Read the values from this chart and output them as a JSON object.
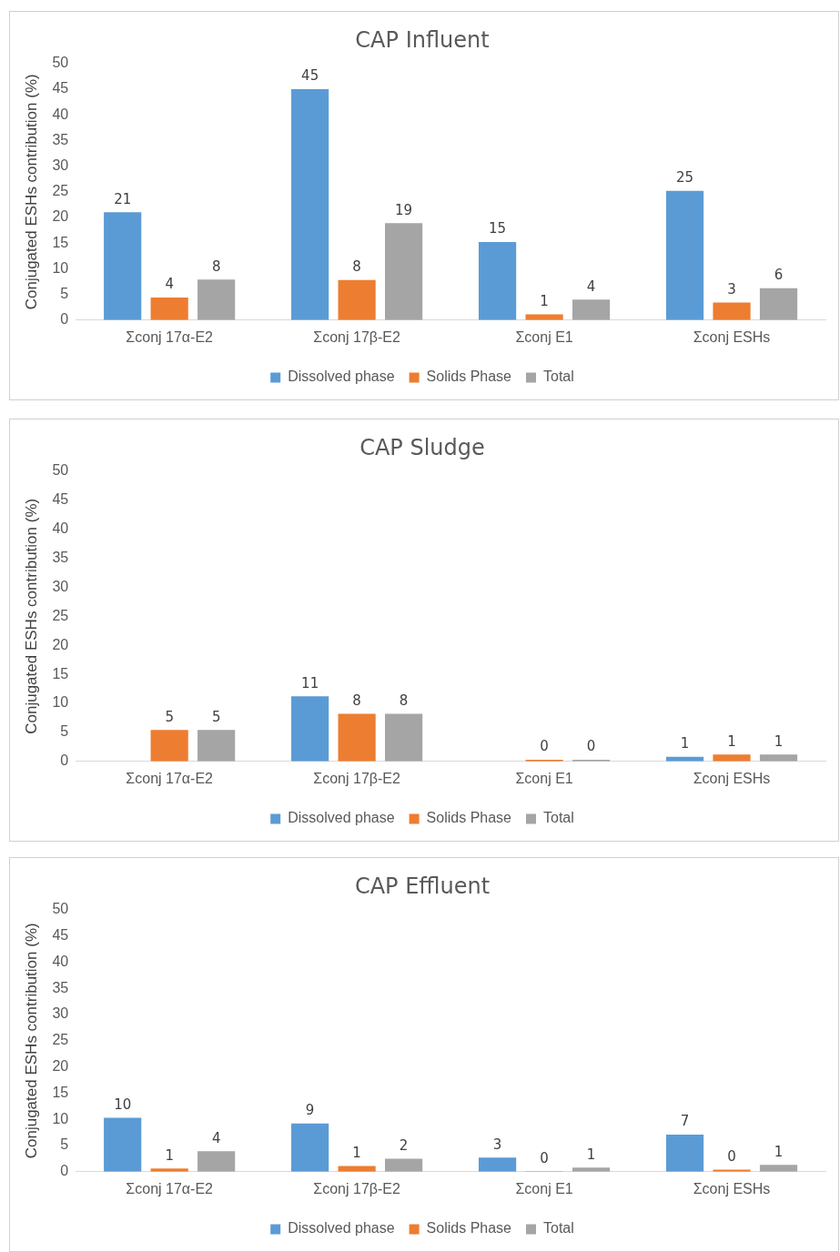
{
  "chart_data": [
    {
      "type": "bar",
      "title": "CAP Influent",
      "ylabel": "Conjugated ESHs contribution (%)",
      "categories": [
        "Σconj 17α-E2",
        "Σconj 17β-E2",
        "Σconj E1",
        "Σconj ESHs"
      ],
      "ylim": [
        0,
        50
      ],
      "yticks": [
        0,
        5,
        10,
        15,
        20,
        25,
        30,
        35,
        40,
        45,
        50
      ],
      "grid": false,
      "legend": "bottom",
      "series": [
        {
          "name": "Dissolved phase",
          "color": "#5b9bd5",
          "values": [
            21,
            45,
            15.2,
            25.2
          ],
          "value_labels": [
            "21",
            "45",
            "15",
            "25"
          ]
        },
        {
          "name": "Solids Phase",
          "color": "#ed7d31",
          "values": [
            4.4,
            7.8,
            1.1,
            3.4
          ],
          "value_labels": [
            "4",
            "8",
            "1",
            "3"
          ]
        },
        {
          "name": "Total",
          "color": "#a5a5a5",
          "values": [
            7.9,
            18.9,
            4,
            6.2
          ],
          "value_labels": [
            "8",
            "19",
            "4",
            "6"
          ]
        }
      ]
    },
    {
      "type": "bar",
      "title": "CAP Sludge",
      "ylabel": "Conjugated ESHs contribution (%)",
      "categories": [
        "Σconj 17α-E2",
        "Σconj 17β-E2",
        "Σconj E1",
        "Σconj ESHs"
      ],
      "ylim": [
        0,
        50
      ],
      "yticks": [
        0,
        5,
        10,
        15,
        20,
        25,
        30,
        35,
        40,
        45,
        50
      ],
      "grid": false,
      "legend": "bottom",
      "series": [
        {
          "name": "Dissolved phase",
          "color": "#5b9bd5",
          "values": [
            null,
            11.2,
            null,
            0.8
          ],
          "value_labels": [
            null,
            "11",
            null,
            "1"
          ]
        },
        {
          "name": "Solids Phase",
          "color": "#ed7d31",
          "values": [
            5.4,
            8.2,
            0.3,
            1.2
          ],
          "value_labels": [
            "5",
            "8",
            "0",
            "1"
          ]
        },
        {
          "name": "Total",
          "color": "#a5a5a5",
          "values": [
            5.4,
            8.2,
            0.3,
            1.2
          ],
          "value_labels": [
            "5",
            "8",
            "0",
            "1"
          ]
        }
      ]
    },
    {
      "type": "bar",
      "title": "CAP Effluent",
      "ylabel": "Conjugated ESHs contribution (%)",
      "categories": [
        "Σconj 17α-E2",
        "Σconj 17β-E2",
        "Σconj E1",
        "Σconj ESHs"
      ],
      "ylim": [
        0,
        50
      ],
      "yticks": [
        0,
        5,
        10,
        15,
        20,
        25,
        30,
        35,
        40,
        45,
        50
      ],
      "grid": false,
      "legend": "bottom",
      "series": [
        {
          "name": "Dissolved phase",
          "color": "#5b9bd5",
          "values": [
            10.3,
            9.2,
            2.7,
            7.1
          ],
          "value_labels": [
            "10",
            "9",
            "3",
            "7"
          ]
        },
        {
          "name": "Solids Phase",
          "color": "#ed7d31",
          "values": [
            0.6,
            1.1,
            0.1,
            0.4
          ],
          "value_labels": [
            "1",
            "1",
            "0",
            "0"
          ]
        },
        {
          "name": "Total",
          "color": "#a5a5a5",
          "values": [
            3.9,
            2.5,
            0.8,
            1.3
          ],
          "value_labels": [
            "4",
            "2",
            "1",
            "1"
          ]
        }
      ]
    }
  ]
}
